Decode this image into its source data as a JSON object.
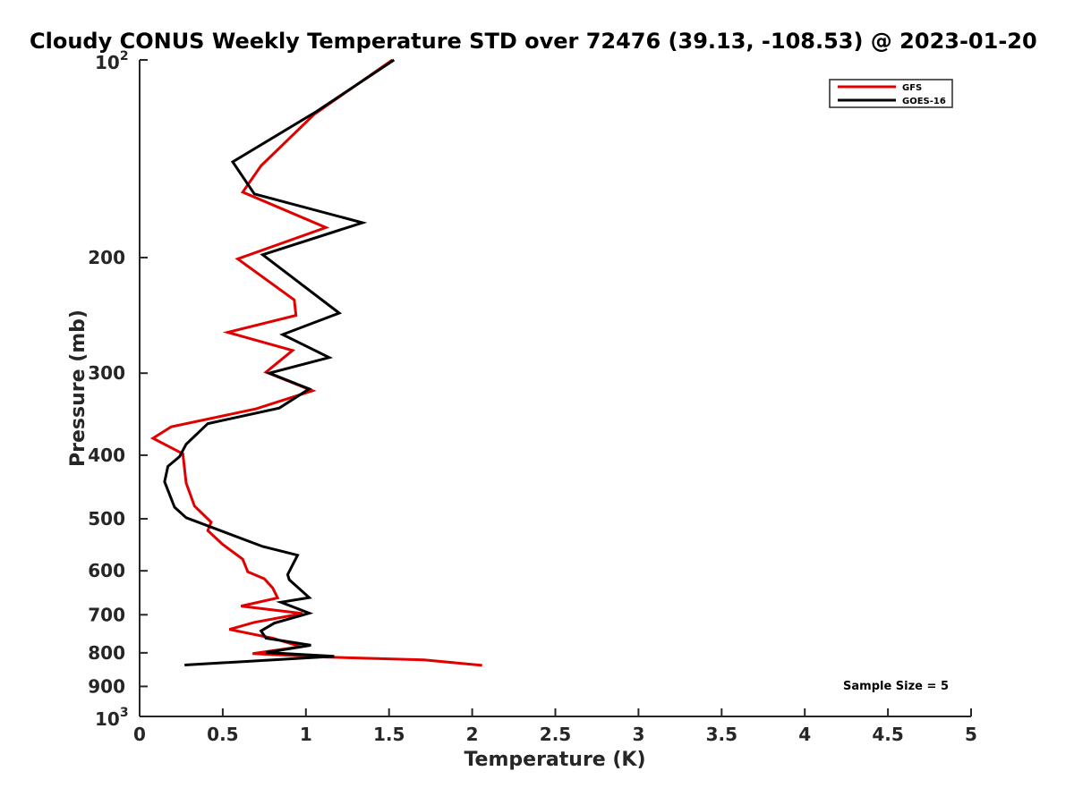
{
  "chart_data": {
    "type": "line",
    "title": "Cloudy CONUS Weekly Temperature STD over 72476 (39.13, -108.53) @ 2023-01-20",
    "xlabel": "Temperature (K)",
    "ylabel": "Pressure (mb)",
    "xlim": [
      0,
      5
    ],
    "ylim": [
      100,
      1000
    ],
    "yscale": "log",
    "y_reversed": true,
    "x_ticks": [
      "0",
      "0.5",
      "1",
      "1.5",
      "2",
      "2.5",
      "3",
      "3.5",
      "4",
      "4.5",
      "5"
    ],
    "y_ticks": [
      {
        "value": 100,
        "base": "10",
        "exp": "2"
      },
      {
        "value": 200,
        "label": "200"
      },
      {
        "value": 300,
        "label": "300"
      },
      {
        "value": 400,
        "label": "400"
      },
      {
        "value": 500,
        "label": "500"
      },
      {
        "value": 600,
        "label": "600"
      },
      {
        "value": 700,
        "label": "700"
      },
      {
        "value": 800,
        "label": "800"
      },
      {
        "value": 900,
        "label": "900"
      },
      {
        "value": 1000,
        "base": "10",
        "exp": "3"
      }
    ],
    "grid": false,
    "legend_position": "top-right",
    "annotation": "Sample Size = 5",
    "series": [
      {
        "name": "GFS",
        "color": "#e00000",
        "points": [
          [
            1.52,
            100
          ],
          [
            1.05,
            121
          ],
          [
            0.73,
            145
          ],
          [
            0.62,
            159
          ],
          [
            1.12,
            180
          ],
          [
            0.59,
            201
          ],
          [
            0.93,
            232
          ],
          [
            0.94,
            245
          ],
          [
            0.53,
            260
          ],
          [
            0.92,
            277
          ],
          [
            0.76,
            299
          ],
          [
            1.04,
            319
          ],
          [
            0.7,
            340
          ],
          [
            0.19,
            362
          ],
          [
            0.08,
            377
          ],
          [
            0.26,
            398
          ],
          [
            0.28,
            441
          ],
          [
            0.33,
            478
          ],
          [
            0.43,
            506
          ],
          [
            0.41,
            521
          ],
          [
            0.5,
            547
          ],
          [
            0.62,
            576
          ],
          [
            0.65,
            602
          ],
          [
            0.75,
            617
          ],
          [
            0.8,
            637
          ],
          [
            0.83,
            660
          ],
          [
            0.61,
            679
          ],
          [
            0.98,
            697
          ],
          [
            0.69,
            719
          ],
          [
            0.54,
            737
          ],
          [
            0.8,
            760
          ],
          [
            0.97,
            783
          ],
          [
            0.68,
            802
          ],
          [
            1.12,
            812
          ],
          [
            1.71,
            820
          ],
          [
            2.06,
            836
          ]
        ]
      },
      {
        "name": "GOES-16",
        "color": "#000000",
        "points": [
          [
            1.53,
            100
          ],
          [
            1.06,
            120
          ],
          [
            0.56,
            143
          ],
          [
            0.69,
            160
          ],
          [
            1.34,
            177
          ],
          [
            0.74,
            198
          ],
          [
            1.2,
            243
          ],
          [
            0.86,
            262
          ],
          [
            1.14,
            284
          ],
          [
            0.78,
            300
          ],
          [
            1.02,
            317
          ],
          [
            0.84,
            339
          ],
          [
            0.41,
            358
          ],
          [
            0.28,
            385
          ],
          [
            0.24,
            402
          ],
          [
            0.17,
            416
          ],
          [
            0.15,
            439
          ],
          [
            0.21,
            480
          ],
          [
            0.28,
            498
          ],
          [
            0.74,
            551
          ],
          [
            0.95,
            568
          ],
          [
            0.89,
            608
          ],
          [
            0.9,
            619
          ],
          [
            1.02,
            659
          ],
          [
            0.85,
            670
          ],
          [
            1.02,
            696
          ],
          [
            0.81,
            721
          ],
          [
            0.73,
            741
          ],
          [
            0.76,
            760
          ],
          [
            1.03,
            779
          ],
          [
            0.76,
            799
          ],
          [
            1.17,
            810
          ],
          [
            0.27,
            835
          ]
        ]
      }
    ]
  }
}
